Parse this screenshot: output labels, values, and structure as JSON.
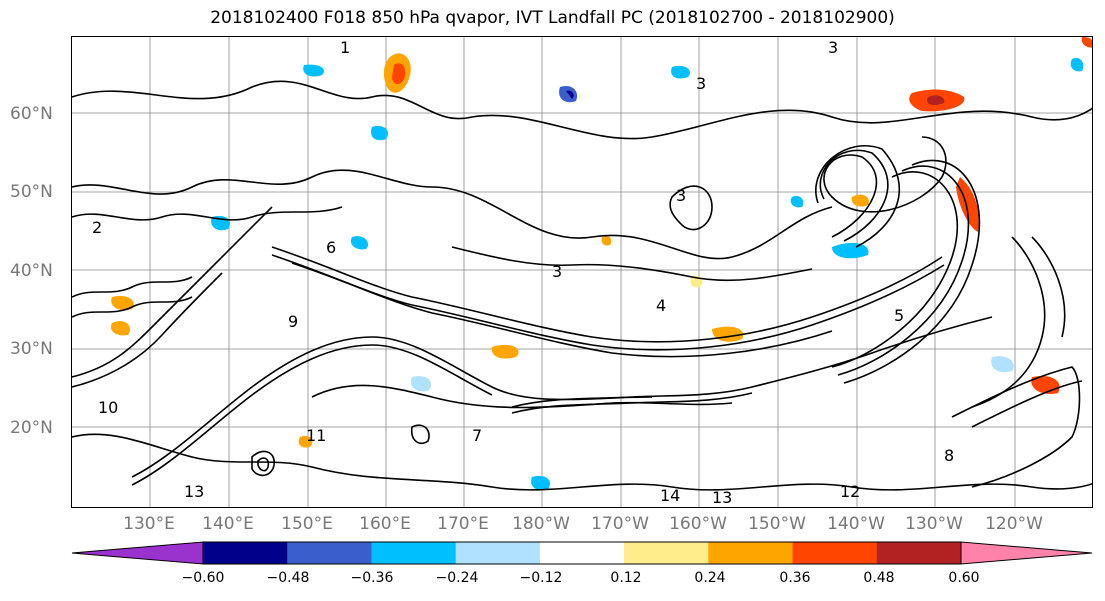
{
  "title": "2018102400 F018 850 hPa qvapor, IVT Landfall PC (2018102700 - 2018102900)",
  "lat_labels": [
    "60°N",
    "50°N",
    "40°N",
    "30°N",
    "20°N"
  ],
  "lon_labels": [
    "130°E",
    "140°E",
    "150°E",
    "160°E",
    "170°E",
    "180°W",
    "170°W",
    "160°W",
    "150°W",
    "140°W",
    "130°W",
    "120°W"
  ],
  "colorbar": {
    "ticks": [
      "−0.60",
      "−0.48",
      "−0.36",
      "−0.24",
      "−0.12",
      "0.12",
      "0.24",
      "0.36",
      "0.48",
      "0.60"
    ],
    "colors": [
      "#9a32cd",
      "#00008b",
      "#3a5fcd",
      "#00bfff",
      "#b0e2ff",
      "#ffffff",
      "#ffec8b",
      "#ffa500",
      "#ff4500",
      "#b22222",
      "#ff82ab"
    ]
  },
  "contour_labels": [
    "1",
    "2",
    "3",
    "3",
    "3",
    "3",
    "6",
    "9",
    "10",
    "11",
    "12",
    "13",
    "13",
    "14",
    "4",
    "5",
    "8",
    "7"
  ]
}
